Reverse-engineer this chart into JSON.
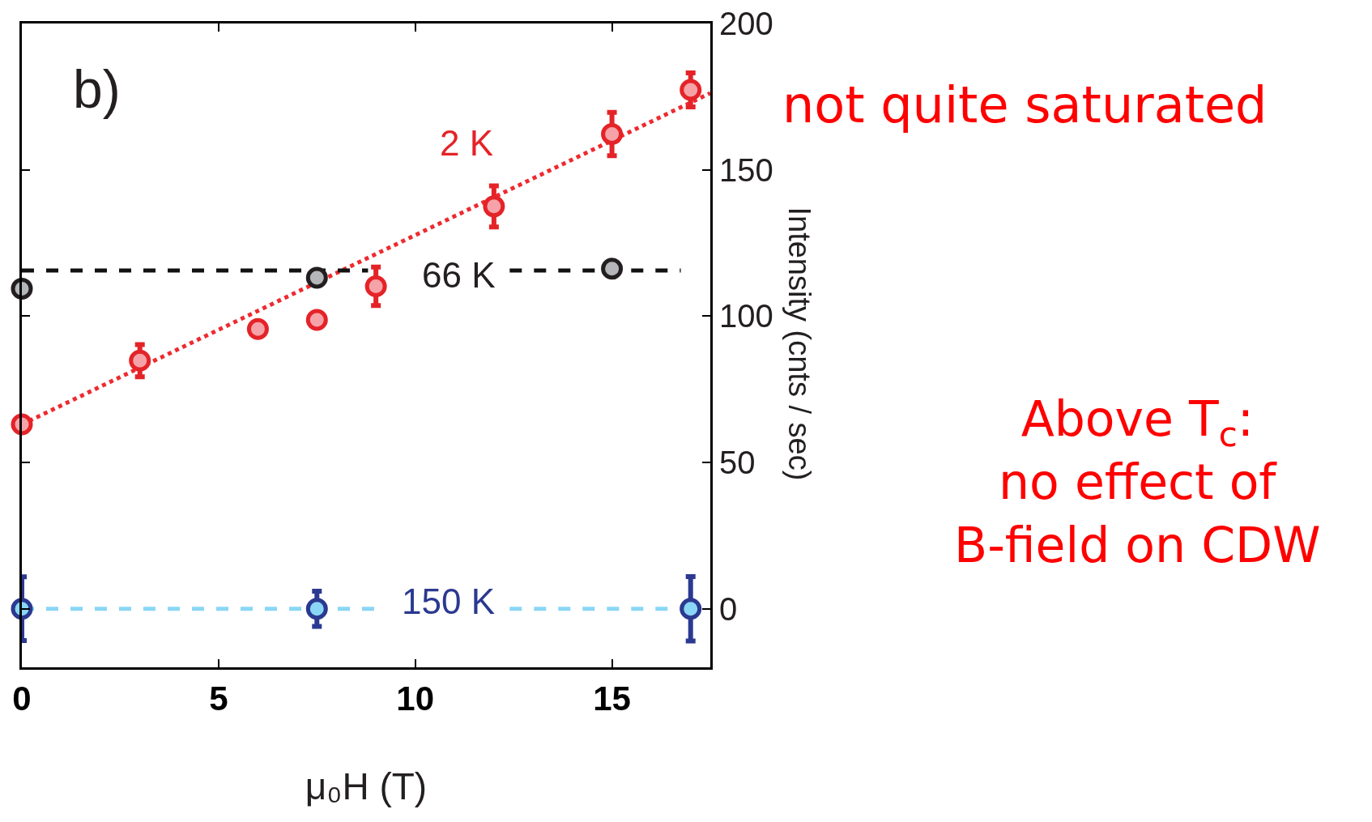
{
  "chart_data": {
    "type": "scatter",
    "xlabel": "μ₀H (T)",
    "ylabel": "Intensity (cnts / sec)",
    "xlim": [
      0,
      17.5
    ],
    "xticks": [
      0,
      5,
      10,
      15
    ],
    "ylim": [
      -20,
      200
    ],
    "yticks": [
      0,
      50,
      100,
      150,
      200
    ],
    "grid": false,
    "series": [
      {
        "type": "line",
        "marker": "none",
        "color": "#ee2a2f",
        "line_style": "dotted",
        "x": [
          0,
          17.5
        ],
        "values": [
          63,
          176.2
        ]
      },
      {
        "type": "line",
        "marker": "none",
        "color": "#111111",
        "line_style": "dashed",
        "x": [
          0,
          8.8,
          10,
          12.4,
          16.75
        ],
        "values": [
          115.6,
          115.6,
          null,
          115.6,
          115.6
        ]
      },
      {
        "type": "line",
        "marker": "none",
        "color": "#8ad6f5",
        "line_style": "dashed",
        "x": [
          0,
          9,
          10.5,
          12.4,
          17
        ],
        "values": [
          0,
          0,
          null,
          0,
          0
        ]
      },
      {
        "marker": "circle",
        "color": "#e42328",
        "x": [
          0,
          3,
          6,
          7.5,
          9,
          12,
          15,
          17
        ],
        "values": [
          63,
          84.8,
          95.6,
          98.7,
          110.2,
          137.5,
          162.2,
          177.3
        ],
        "errors": [
          null,
          5.5,
          null,
          null,
          6.6,
          7,
          7.4,
          5.8
        ]
      },
      {
        "marker": "circle",
        "color": "#231f20",
        "x": [
          0,
          7.5,
          15
        ],
        "values": [
          109.4,
          113.1,
          116.2
        ]
      },
      {
        "marker": "circle",
        "color": "#2b3990",
        "x": [
          0,
          7.5,
          17
        ],
        "values": [
          0,
          0,
          0
        ],
        "errors": [
          10.9,
          6,
          11
        ]
      }
    ],
    "annotations": [
      "b)",
      "2 K",
      "66 K",
      "150 K",
      "not quite saturated",
      "Above T$_{c}$:\nno effect of\nB-field on CDW"
    ]
  }
}
